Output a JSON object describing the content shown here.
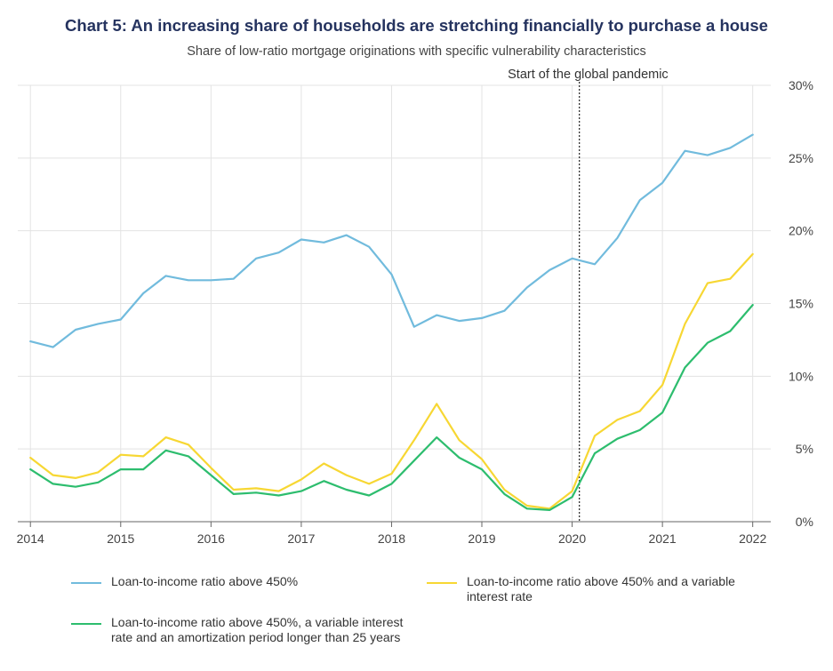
{
  "chart_data": {
    "type": "line",
    "title": "Chart 5: An increasing share of households are stretching financially to purchase a house",
    "subtitle": "Share of low-ratio mortgage originations with specific vulnerability characteristics",
    "xlim": [
      2013.86,
      2022.2
    ],
    "ylim": [
      0,
      30
    ],
    "x_ticks": [
      2014,
      2015,
      2016,
      2017,
      2018,
      2019,
      2020,
      2021,
      2022
    ],
    "y_ticks": [
      0,
      5,
      10,
      15,
      20,
      25,
      30
    ],
    "y_tick_labels": [
      "0%",
      "5%",
      "10%",
      "15%",
      "20%",
      "25%",
      "30%"
    ],
    "y_axis_position": "right",
    "grid": true,
    "legend_position": "bottom",
    "annotation": {
      "x": 2020.08,
      "text": "Start of the global pandemic"
    },
    "x": [
      2014.0,
      2014.25,
      2014.5,
      2014.75,
      2015.0,
      2015.25,
      2015.5,
      2015.75,
      2016.0,
      2016.25,
      2016.5,
      2016.75,
      2017.0,
      2017.25,
      2017.5,
      2017.75,
      2018.0,
      2018.25,
      2018.5,
      2018.75,
      2019.0,
      2019.25,
      2019.5,
      2019.75,
      2020.0,
      2020.25,
      2020.5,
      2020.75,
      2021.0,
      2021.25,
      2021.5,
      2021.75,
      2022.0
    ],
    "series": [
      {
        "name": "Loan-to-income ratio above 450%",
        "color": "#71bbdd",
        "values": [
          12.4,
          12.0,
          13.2,
          13.6,
          13.9,
          15.7,
          16.9,
          16.6,
          16.6,
          16.7,
          18.1,
          18.5,
          19.4,
          19.2,
          19.7,
          18.9,
          17.0,
          13.4,
          14.2,
          13.8,
          14.0,
          14.5,
          16.1,
          17.3,
          18.1,
          17.7,
          19.5,
          22.1,
          23.3,
          25.5,
          25.2,
          25.7,
          26.6
        ]
      },
      {
        "name": "Loan-to-income ratio above 450% and a variable interest rate",
        "color": "#f7d733",
        "values": [
          4.4,
          3.2,
          3.0,
          3.4,
          4.6,
          4.5,
          5.8,
          5.3,
          3.7,
          2.2,
          2.3,
          2.1,
          2.9,
          4.0,
          3.2,
          2.6,
          3.3,
          5.6,
          8.1,
          5.6,
          4.3,
          2.2,
          1.1,
          0.9,
          2.1,
          5.9,
          7.0,
          7.6,
          9.4,
          13.6,
          16.4,
          16.7,
          18.4
        ]
      },
      {
        "name": "Loan-to-income ratio above 450%, a variable interest rate and an amortization period longer than 25 years",
        "color": "#2dbd6e",
        "values": [
          3.6,
          2.6,
          2.4,
          2.7,
          3.6,
          3.6,
          4.9,
          4.5,
          3.2,
          1.9,
          2.0,
          1.8,
          2.1,
          2.8,
          2.2,
          1.8,
          2.6,
          4.2,
          5.8,
          4.4,
          3.6,
          1.9,
          0.9,
          0.8,
          1.7,
          4.7,
          5.7,
          6.3,
          7.5,
          10.6,
          12.3,
          13.1,
          14.9
        ]
      }
    ]
  }
}
